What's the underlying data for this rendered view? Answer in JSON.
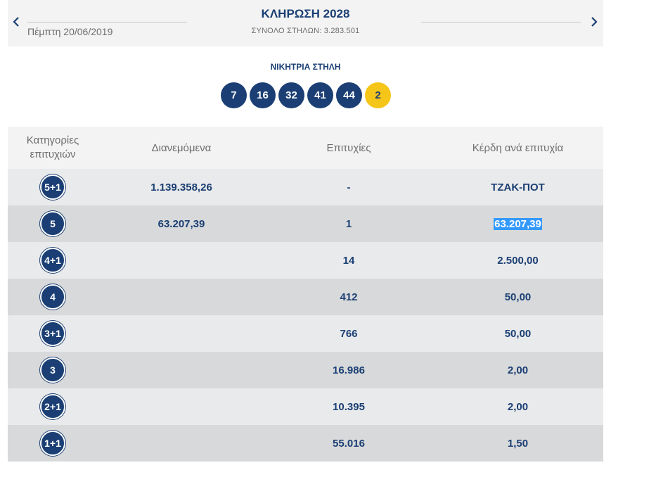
{
  "header": {
    "title": "ΚΛΗΡΩΣΗ 2028",
    "date": "Πέμπτη 20/06/2019",
    "total": "ΣΥΝΟΛΟ ΣΤΗΛΩΝ: 3.283.501"
  },
  "winning": {
    "label": "ΝΙΚΗΤΡΙΑ ΣΤΗΛΗ",
    "numbers": [
      "7",
      "16",
      "32",
      "41",
      "44"
    ],
    "joker": "2"
  },
  "table": {
    "headers": {
      "category_line1": "Κατηγορίες",
      "category_line2": "επιτυχιών",
      "distributed": "Διανεμόμενα",
      "wins": "Επιτυχίες",
      "prize": "Κέρδη ανά επιτυχία"
    },
    "rows": [
      {
        "category": "5+1",
        "distributed": "1.139.358,26",
        "wins": "-",
        "prize": "ΤΖΑΚ-ΠΟΤ"
      },
      {
        "category": "5",
        "distributed": "63.207,39",
        "wins": "1",
        "prize": "63.207,39"
      },
      {
        "category": "4+1",
        "distributed": "",
        "wins": "14",
        "prize": "2.500,00"
      },
      {
        "category": "4",
        "distributed": "",
        "wins": "412",
        "prize": "50,00"
      },
      {
        "category": "3+1",
        "distributed": "",
        "wins": "766",
        "prize": "50,00"
      },
      {
        "category": "3",
        "distributed": "",
        "wins": "16.986",
        "prize": "2,00"
      },
      {
        "category": "2+1",
        "distributed": "",
        "wins": "10.395",
        "prize": "2,00"
      },
      {
        "category": "1+1",
        "distributed": "",
        "wins": "55.016",
        "prize": "1,50"
      }
    ]
  },
  "colors": {
    "primary": "#1b3f74",
    "joker": "#f5c518",
    "selection": "#3399ff"
  },
  "icons": {
    "prev": "chevron-left-icon",
    "next": "chevron-right-icon"
  }
}
